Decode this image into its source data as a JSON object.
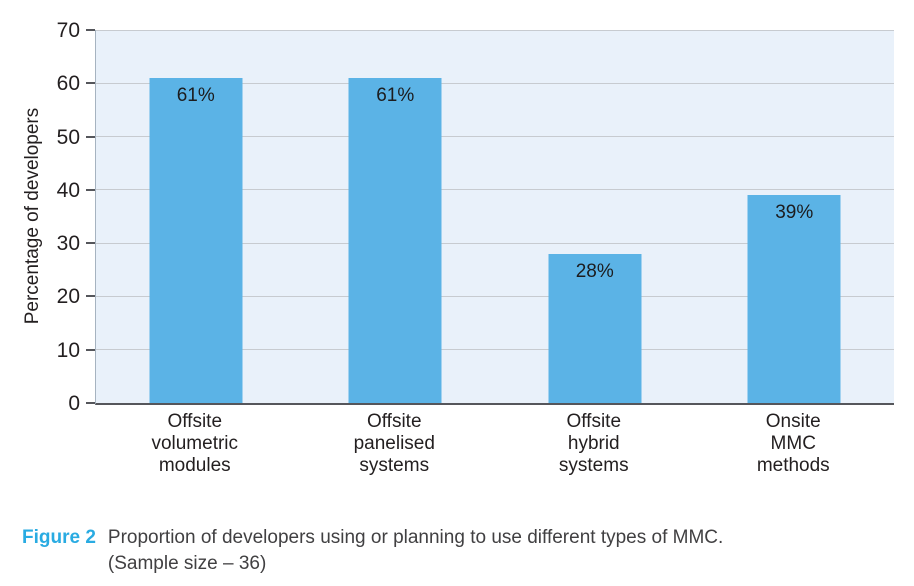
{
  "chart_data": {
    "type": "bar",
    "title": "",
    "xlabel": "",
    "ylabel": "Percentage of developers",
    "categories": [
      "Offsite volumetric modules",
      "Offsite panelised systems",
      "Offsite hybrid systems",
      "Onsite MMC methods"
    ],
    "category_lines": [
      [
        "Offsite",
        "volumetric",
        "modules"
      ],
      [
        "Offsite",
        "panelised",
        "systems"
      ],
      [
        "Offsite",
        "hybrid",
        "systems"
      ],
      [
        "Onsite",
        "MMC",
        "methods"
      ]
    ],
    "values": [
      61,
      61,
      28,
      39
    ],
    "bar_labels": [
      "61%",
      "61%",
      "28%",
      "39%"
    ],
    "ylim": [
      0,
      70
    ],
    "yticks": [
      0,
      10,
      20,
      30,
      40,
      50,
      60,
      70
    ],
    "grid": true,
    "legend": "none",
    "colors": {
      "bar": "#5bb3e6",
      "plot_bg": "#e9f1fa",
      "gridline": "#c7cbd0",
      "axis": "#55565b",
      "text": "#231f20",
      "figure_label": "#29abe2"
    }
  },
  "caption": {
    "label": "Figure 2",
    "text": "Proportion of developers using or planning to use different types of MMC.",
    "sample_size": "(Sample size – 36)"
  }
}
